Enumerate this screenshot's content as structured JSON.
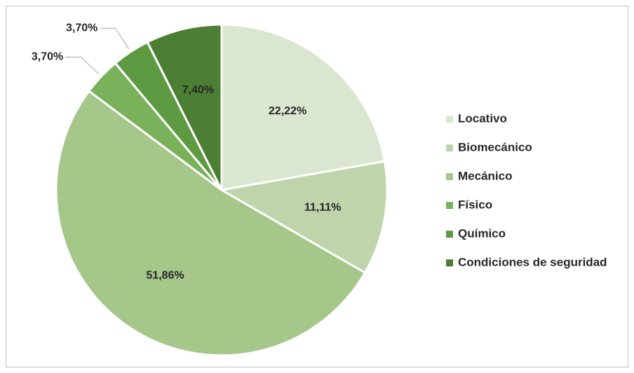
{
  "chart_data": {
    "type": "pie",
    "categories": [
      "Locativo",
      "Biomecánico",
      "Mecánico",
      "Físico",
      "Químico",
      "Condiciones de seguridad"
    ],
    "values": [
      22.22,
      11.11,
      51.86,
      3.7,
      3.7,
      7.4
    ],
    "value_labels": [
      "22,22%",
      "11,11%",
      "51,86%",
      "3,70%",
      "3,70%",
      "7,40%"
    ],
    "colors": [
      "#dbe6d0",
      "#bfd4ab",
      "#a6c78a",
      "#79b25a",
      "#5e9a42",
      "#4c7f33"
    ]
  }
}
